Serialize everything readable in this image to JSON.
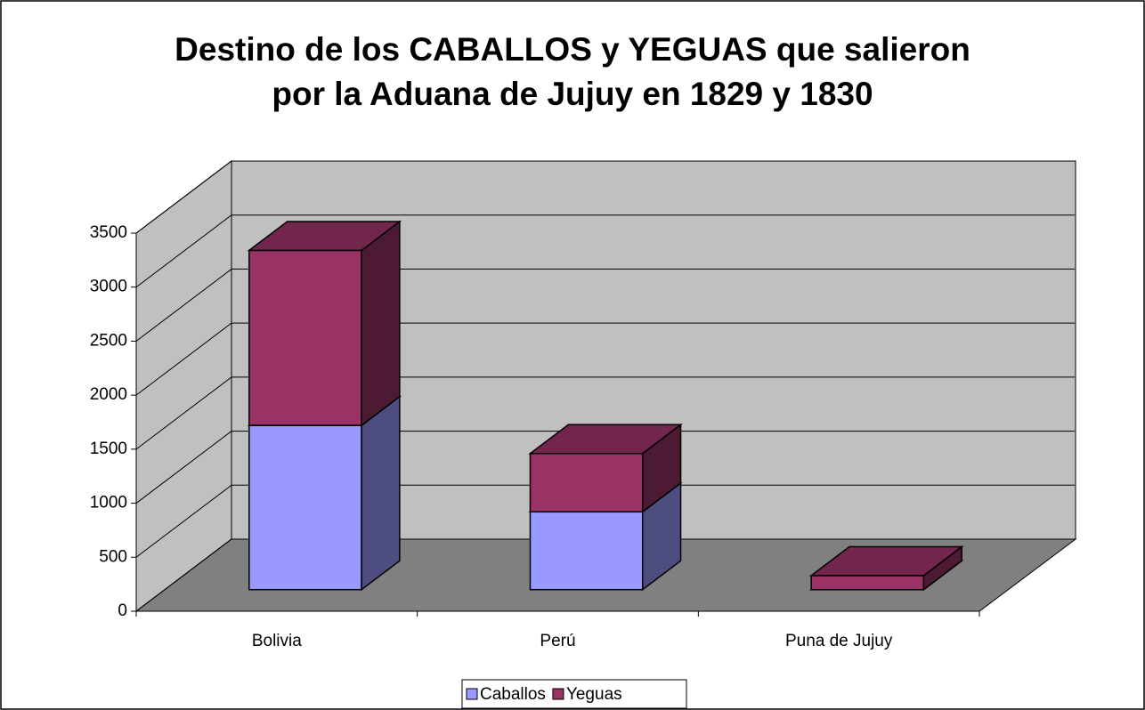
{
  "chart_data": {
    "type": "bar3d_stacked",
    "title": [
      "Destino de los CABALLOS y YEGUAS que salieron",
      "por la Aduana de Jujuy en 1829 y 1830"
    ],
    "categories": [
      "Bolivia",
      "Perú",
      "Puna de Jujuy"
    ],
    "series": [
      {
        "name": "Caballos",
        "color": "#9999ff",
        "values": [
          1520,
          720,
          0
        ]
      },
      {
        "name": "Yeguas",
        "color": "#993366",
        "values": [
          1620,
          540,
          130
        ]
      }
    ],
    "ylim": [
      0,
      3500
    ],
    "yticks": [
      0,
      500,
      1000,
      1500,
      2000,
      2500,
      3000,
      3500
    ],
    "grid": true,
    "legend": "bottom"
  }
}
